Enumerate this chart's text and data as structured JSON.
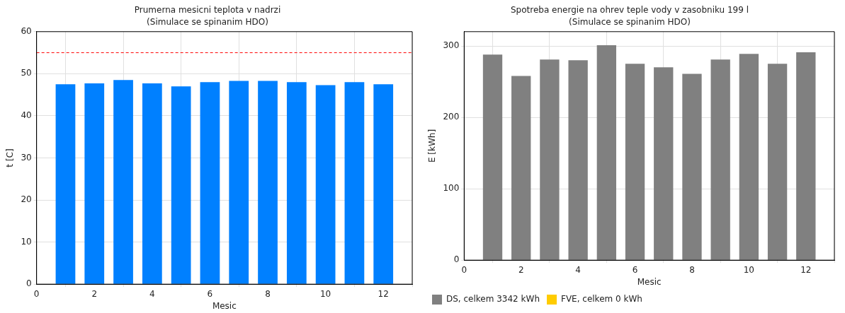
{
  "chart_data": [
    {
      "type": "bar",
      "title": "Prumerna mesicni teplota v nadrzi",
      "subtitle": "(Simulace se spinanim HDO)",
      "xlabel": "Mesic",
      "ylabel": "t [C]",
      "x": [
        1,
        2,
        3,
        4,
        5,
        6,
        7,
        8,
        9,
        10,
        11,
        12
      ],
      "series": [
        {
          "color": "#0080ff",
          "values": [
            47.5,
            47.7,
            48.5,
            47.7,
            47.0,
            48.0,
            48.3,
            48.3,
            48.0,
            47.3,
            48.0,
            47.5
          ]
        }
      ],
      "xlim": [
        0,
        13
      ],
      "xticks": [
        0,
        2,
        4,
        6,
        8,
        10,
        12
      ],
      "ylim": [
        0,
        60
      ],
      "yticks": [
        0,
        10,
        20,
        30,
        40,
        50,
        60
      ],
      "ref_lines": [
        {
          "axis": "y",
          "value": 55,
          "color": "#ff0000",
          "line_style": "dashed"
        }
      ],
      "grid": true,
      "legend": false
    },
    {
      "type": "bar",
      "title": "Spotreba energie na ohrev teple vody v zasobniku 199 l",
      "subtitle": "(Simulace se spinanim HDO)",
      "xlabel": "Mesic",
      "ylabel": "E [kWh]",
      "x": [
        1,
        2,
        3,
        4,
        5,
        6,
        7,
        8,
        9,
        10,
        11,
        12
      ],
      "series": [
        {
          "name": "DS, celkem 3342 kWh",
          "color": "#808080",
          "values": [
            288,
            258,
            281,
            280,
            301,
            275,
            270,
            261,
            281,
            289,
            275,
            291
          ]
        },
        {
          "name": "FVE, celkem 0 kWh",
          "color": "#ffcc00",
          "values": [
            0,
            0,
            0,
            0,
            0,
            0,
            0,
            0,
            0,
            0,
            0,
            0
          ]
        }
      ],
      "xlim": [
        0,
        13
      ],
      "xticks": [
        0,
        2,
        4,
        6,
        8,
        10,
        12
      ],
      "ylim": [
        0,
        320
      ],
      "yticks": [
        0,
        100,
        200,
        300
      ],
      "grid": true,
      "legend": "bottom left"
    }
  ]
}
